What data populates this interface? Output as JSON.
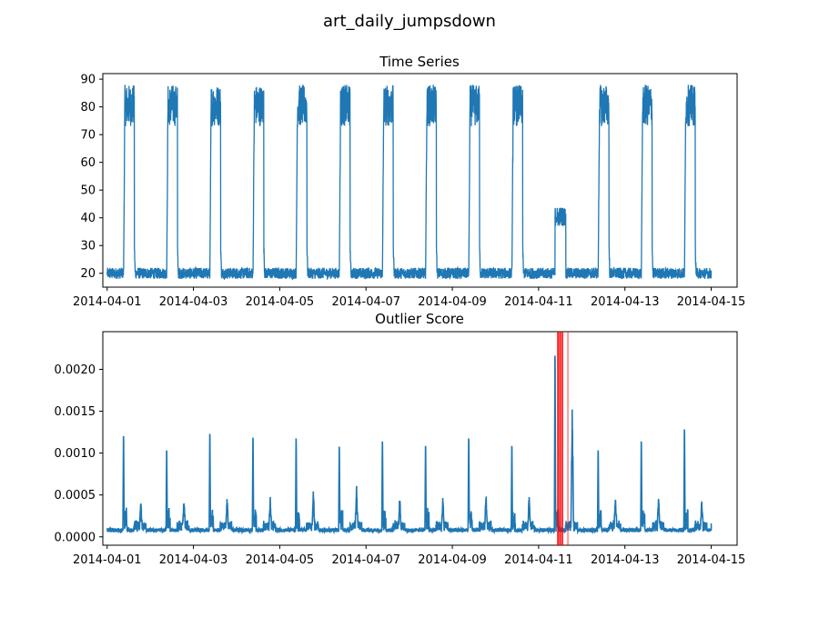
{
  "figure": {
    "suptitle": "art_daily_jumpsdown"
  },
  "colors": {
    "series": "#1f77b4",
    "highlight": "#ff0000",
    "axes": "#000000",
    "background": "#ffffff"
  },
  "chart_data": [
    {
      "type": "line",
      "title": "Time Series",
      "xlabel": "",
      "ylabel": "",
      "x_range": [
        "2014-04-01",
        "2014-04-15"
      ],
      "xlim": [
        -0.1,
        14.6
      ],
      "ylim": [
        15,
        92
      ],
      "x_ticks": [
        "2014-04-01",
        "2014-04-03",
        "2014-04-05",
        "2014-04-07",
        "2014-04-09",
        "2014-04-11",
        "2014-04-13",
        "2014-04-15"
      ],
      "y_ticks": [
        20,
        30,
        40,
        50,
        60,
        70,
        80,
        90
      ],
      "pattern": {
        "baseline_low": 18,
        "baseline_high": 22,
        "daily_high_low": 73,
        "daily_high_high": 88,
        "anomaly_day": "2014-04-11",
        "anomaly_high_low": 37,
        "anomaly_high_high": 44,
        "high_phase_start_fraction": 0.38,
        "high_phase_end_fraction": 0.63
      },
      "grid": false
    },
    {
      "type": "line",
      "title": "Outlier Score",
      "xlabel": "",
      "ylabel": "",
      "x_range": [
        "2014-04-01",
        "2014-04-15"
      ],
      "xlim": [
        -0.1,
        14.6
      ],
      "ylim": [
        -0.0001,
        0.00245
      ],
      "x_ticks": [
        "2014-04-01",
        "2014-04-03",
        "2014-04-05",
        "2014-04-07",
        "2014-04-09",
        "2014-04-11",
        "2014-04-13",
        "2014-04-15"
      ],
      "y_ticks": [
        "0.0000",
        "0.0005",
        "0.0010",
        "0.0015",
        "0.0020"
      ],
      "y_tick_values": [
        0,
        0.0005,
        0.001,
        0.0015,
        0.002
      ],
      "pattern": {
        "baseline": 8e-05,
        "day_peaks": [
          0.00133,
          0.00114,
          0.00136,
          0.00131,
          0.0013,
          0.00119,
          0.00126,
          0.0012,
          0.0013,
          0.0012,
          0.0024,
          0.00114,
          0.00126,
          0.00142
        ],
        "secondary_peaks": [
          0.0004,
          0.00043,
          0.00042,
          0.00042,
          0.00053,
          0.0006,
          0.00046,
          0.00046,
          0.00046,
          0.00046,
          0.00175,
          0.00047,
          0.00047,
          0.00043
        ],
        "end_value": 0.00016
      },
      "highlight_lines": [
        {
          "x": 10.45,
          "opacity": 0.9
        },
        {
          "x": 10.5,
          "opacity": 0.9
        },
        {
          "x": 10.55,
          "opacity": 0.8
        },
        {
          "x": 10.68,
          "opacity": 0.4
        }
      ],
      "grid": false
    }
  ]
}
